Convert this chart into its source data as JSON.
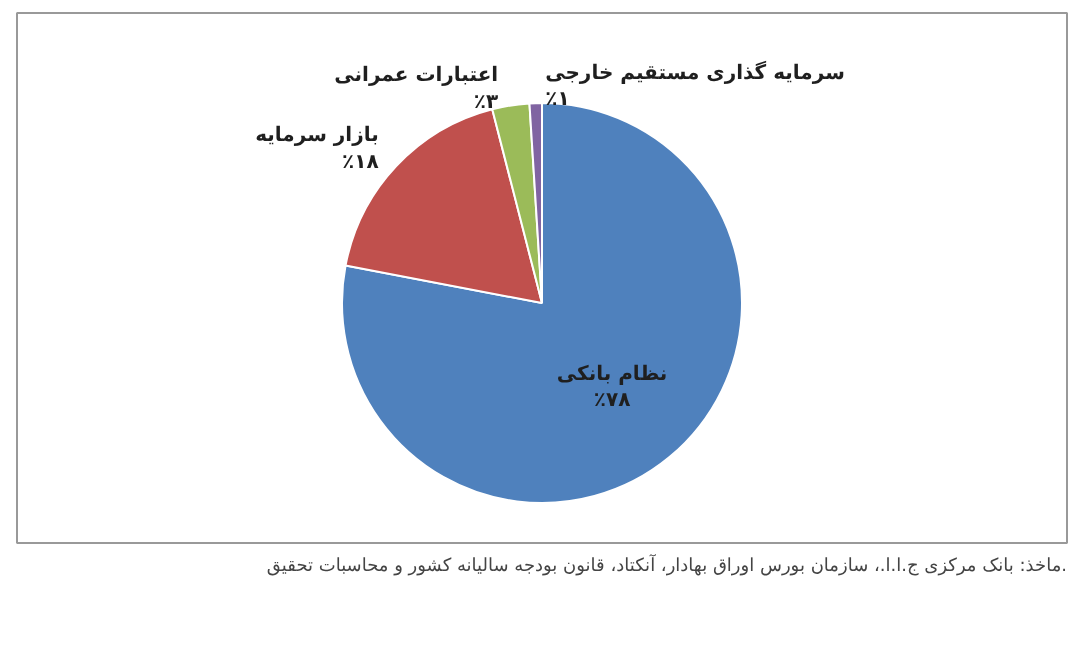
{
  "chart_data": {
    "type": "pie",
    "categories": [
      "نظام بانکی",
      "بازار سرمایه",
      "اعتبارات عمرانی",
      "سرمایه گذاری مستقیم خارجی"
    ],
    "values": [
      78,
      18,
      3,
      1
    ],
    "colors": [
      "#4f81bd",
      "#c0504d",
      "#9bbb59",
      "#8064a2"
    ],
    "value_labels": [
      "٪۷۸",
      "٪۱۸",
      "٪۳",
      "٪۱"
    ],
    "annotations": [
      "ماخذ: بانک مرکزی ج.ا.ا.، سازمان بورس اوراق بهادار، آنکتاد، قانون بودجه سالیانه کشور و محاسبات تحقیق."
    ]
  }
}
